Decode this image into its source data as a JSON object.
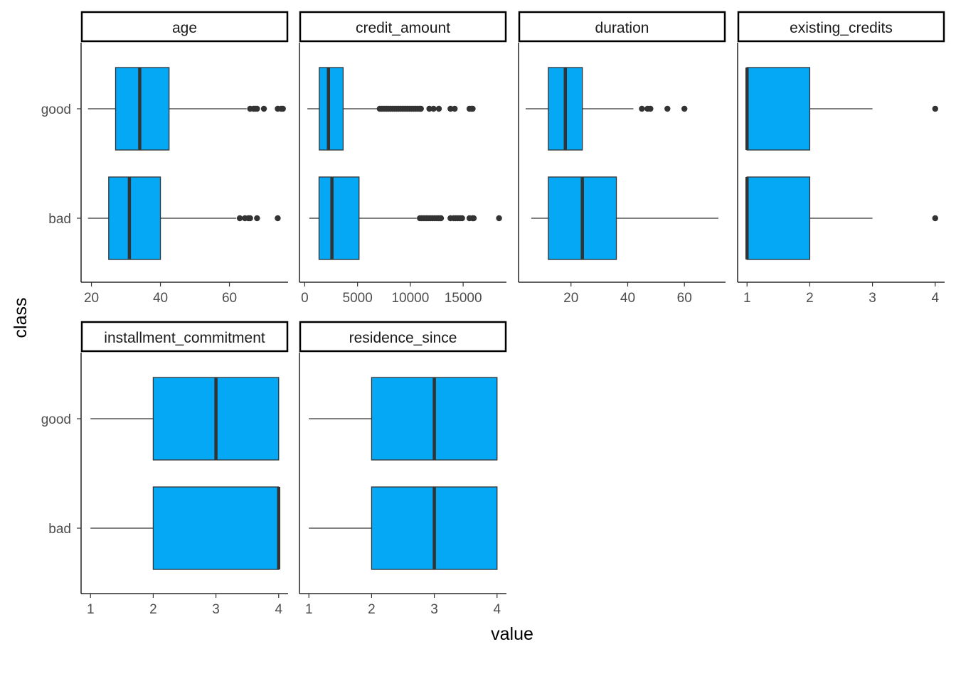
{
  "chart_data": {
    "type": "boxplot",
    "xlabel": "value",
    "ylabel": "class",
    "categories": [
      "good",
      "bad"
    ],
    "colors": {
      "box_fill": "#05A8F5",
      "box_stroke": "#333333",
      "frame": "#000000"
    },
    "grid": false,
    "facets": [
      {
        "name": "age",
        "xlim": [
          17,
          77
        ],
        "ticks": [
          20,
          40,
          60
        ],
        "tick_labels": [
          "20",
          "40",
          "60"
        ],
        "boxes": [
          {
            "class": "good",
            "whisker_low": 19,
            "q1": 27,
            "median": 34,
            "q3": 42.5,
            "whisker_high": 65,
            "outliers": [
              66,
              67,
              67.5,
              68,
              70,
              74,
              75,
              75.5
            ]
          },
          {
            "class": "bad",
            "whisker_low": 19,
            "q1": 25,
            "median": 31,
            "q3": 40,
            "whisker_high": 62,
            "outliers": [
              63,
              64.5,
              65.5,
              66,
              68,
              74
            ]
          }
        ]
      },
      {
        "name": "credit_amount",
        "xlim": [
          -500,
          19100
        ],
        "ticks": [
          0,
          5000,
          10000,
          15000
        ],
        "tick_labels": [
          "0",
          "5000",
          "10000",
          "15000"
        ],
        "boxes": [
          {
            "class": "good",
            "whisker_low": 250,
            "q1": 1375,
            "median": 2245,
            "q3": 3635,
            "whisker_high": 7000,
            "outliers": [
              7100,
              7300,
              7500,
              7700,
              7900,
              8100,
              8300,
              8500,
              8700,
              8900,
              9100,
              9300,
              9500,
              9700,
              9900,
              10100,
              10300,
              10500,
              10700,
              10900,
              11000,
              11800,
              12200,
              12700,
              13800,
              14200,
              15600,
              15800,
              15900
            ]
          },
          {
            "class": "bad",
            "whisker_low": 433,
            "q1": 1352,
            "median": 2575,
            "q3": 5142,
            "whisker_high": 10600,
            "outliers": [
              10900,
              11100,
              11300,
              11500,
              11700,
              11900,
              12100,
              12300,
              12500,
              12700,
              12900,
              13800,
              14100,
              14300,
              14500,
              14700,
              14900,
              15600,
              15900,
              16000,
              18400
            ]
          }
        ]
      },
      {
        "name": "duration",
        "xlim": [
          1.5,
          74.5
        ],
        "ticks": [
          20,
          40,
          60
        ],
        "tick_labels": [
          "20",
          "40",
          "60"
        ],
        "boxes": [
          {
            "class": "good",
            "whisker_low": 4,
            "q1": 12,
            "median": 18,
            "q3": 24,
            "whisker_high": 42,
            "outliers": [
              45,
              47,
              48,
              54,
              60
            ]
          },
          {
            "class": "bad",
            "whisker_low": 6,
            "q1": 12,
            "median": 24,
            "q3": 36,
            "whisker_high": 72,
            "outliers": []
          }
        ]
      },
      {
        "name": "existing_credits",
        "xlim": [
          0.85,
          4.15
        ],
        "ticks": [
          1,
          2,
          3,
          4
        ],
        "tick_labels": [
          "1",
          "2",
          "3",
          "4"
        ],
        "boxes": [
          {
            "class": "good",
            "whisker_low": 1,
            "q1": 1,
            "median": 1,
            "q3": 2,
            "whisker_high": 3,
            "outliers": [
              4
            ]
          },
          {
            "class": "bad",
            "whisker_low": 1,
            "q1": 1,
            "median": 1,
            "q3": 2,
            "whisker_high": 3,
            "outliers": [
              4
            ]
          }
        ]
      },
      {
        "name": "installment_commitment",
        "xlim": [
          0.85,
          4.15
        ],
        "ticks": [
          1,
          2,
          3,
          4
        ],
        "tick_labels": [
          "1",
          "2",
          "3",
          "4"
        ],
        "boxes": [
          {
            "class": "good",
            "whisker_low": 1,
            "q1": 2,
            "median": 3,
            "q3": 4,
            "whisker_high": 4,
            "outliers": []
          },
          {
            "class": "bad",
            "whisker_low": 1,
            "q1": 2,
            "median": 4,
            "q3": 4,
            "whisker_high": 4,
            "outliers": []
          }
        ]
      },
      {
        "name": "residence_since",
        "xlim": [
          0.85,
          4.15
        ],
        "ticks": [
          1,
          2,
          3,
          4
        ],
        "tick_labels": [
          "1",
          "2",
          "3",
          "4"
        ],
        "boxes": [
          {
            "class": "good",
            "whisker_low": 1,
            "q1": 2,
            "median": 3,
            "q3": 4,
            "whisker_high": 4,
            "outliers": []
          },
          {
            "class": "bad",
            "whisker_low": 1,
            "q1": 2,
            "median": 3,
            "q3": 4,
            "whisker_high": 4,
            "outliers": []
          }
        ]
      }
    ]
  }
}
